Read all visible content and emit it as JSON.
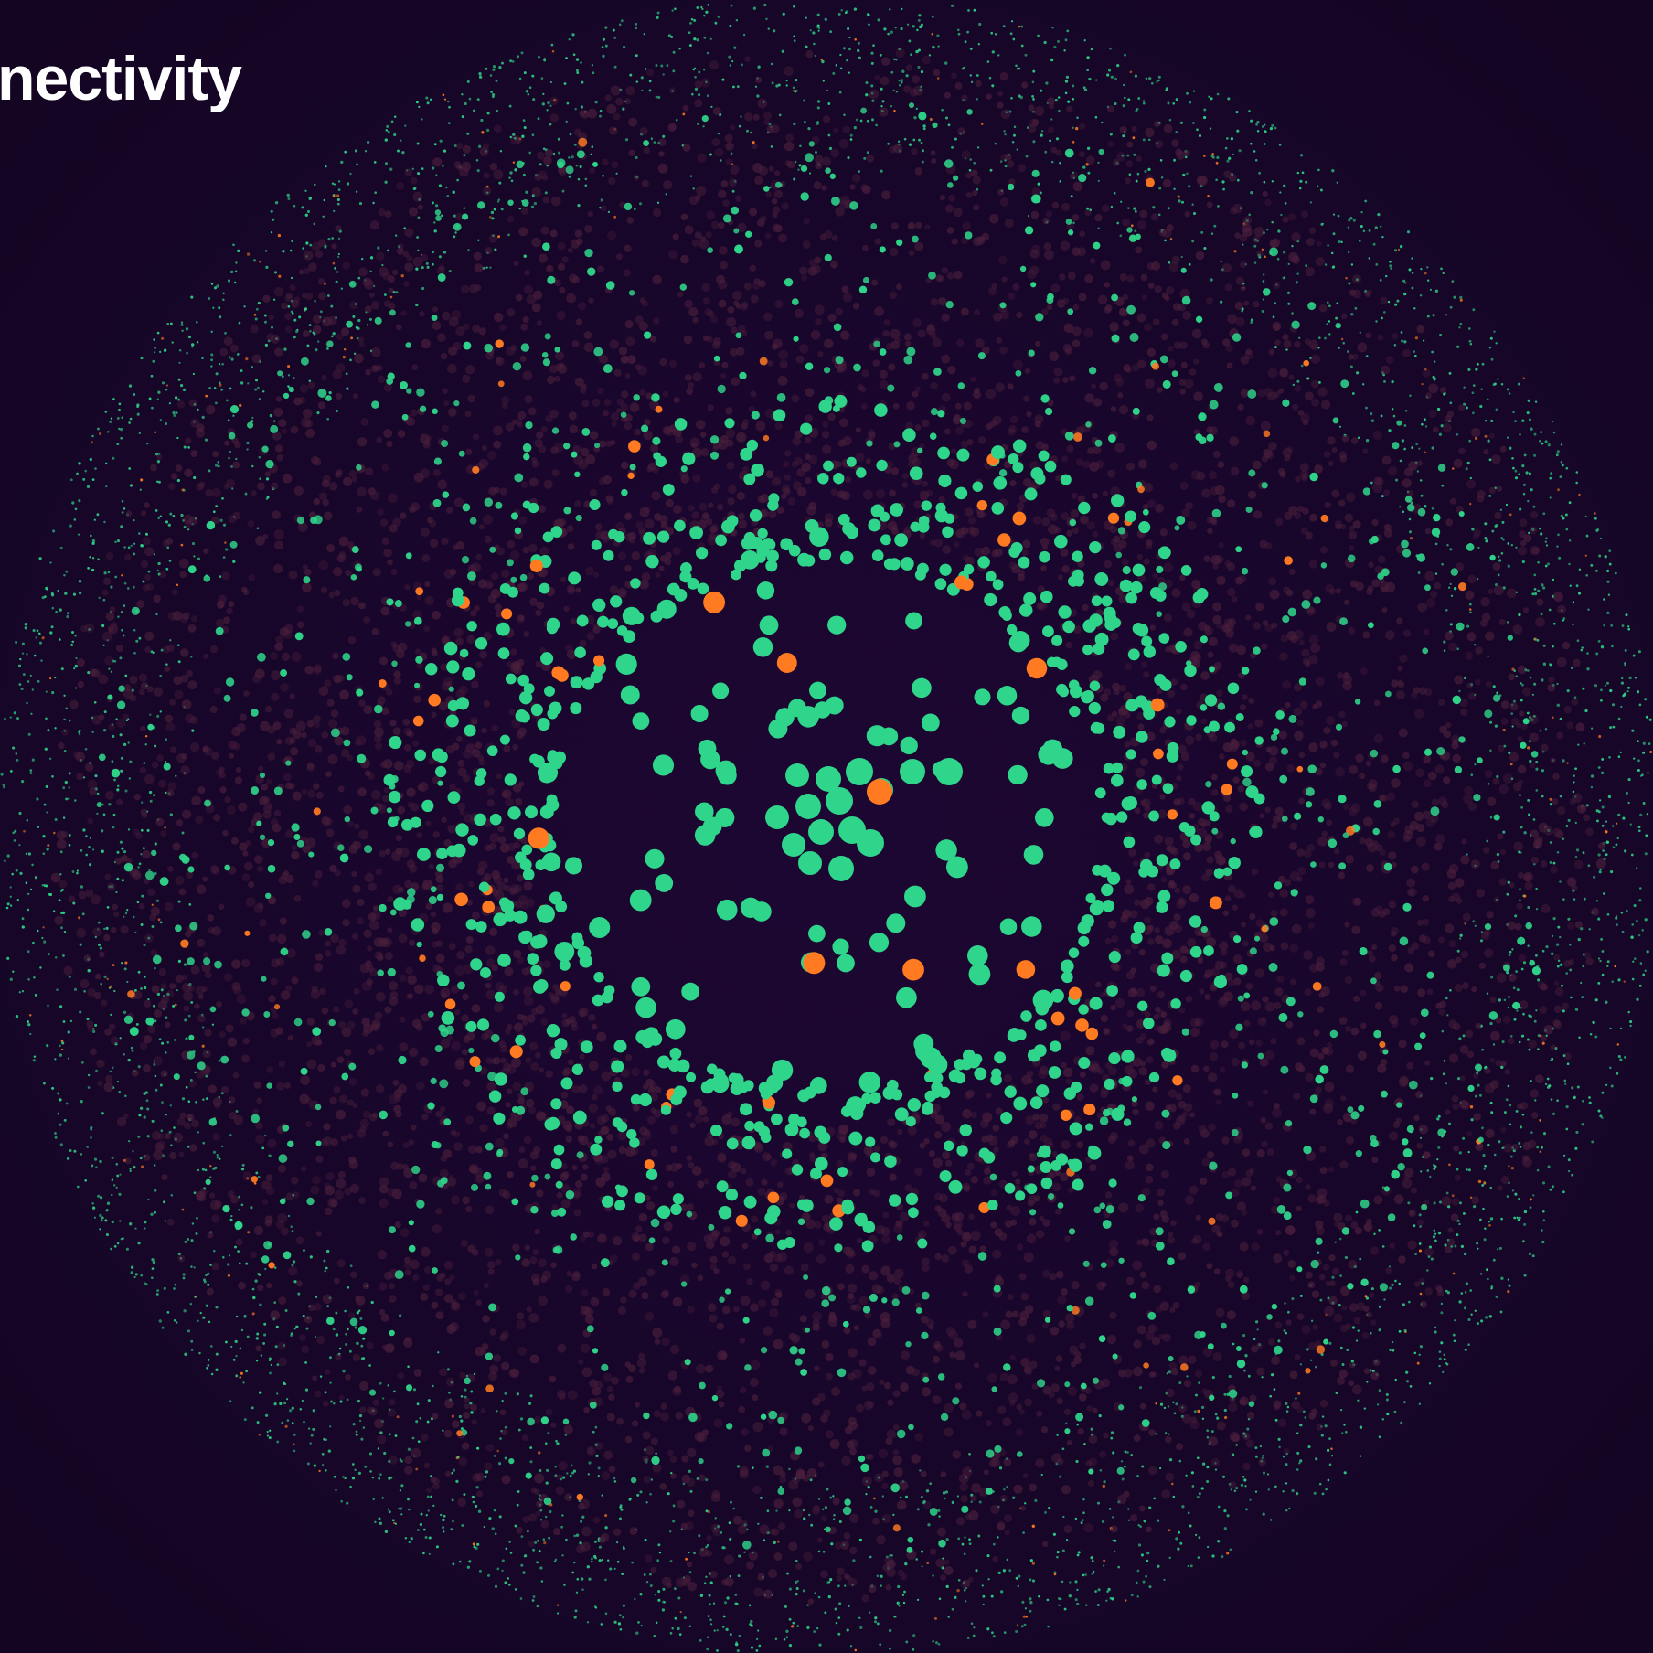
{
  "title": "nectivity",
  "palette": {
    "background": "#170629",
    "node_primary": "#2fd58a",
    "node_accent": "#ff7a21",
    "node_faint": "#4a1f3c",
    "node_hub_ring": "#2fd58a",
    "title_text": "#ffffff"
  }
}
